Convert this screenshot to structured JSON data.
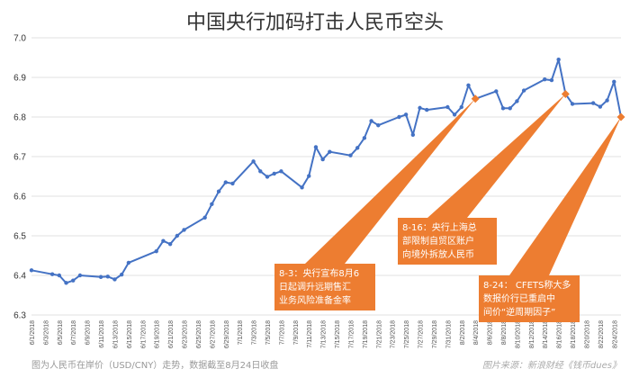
{
  "chart_data": {
    "type": "line",
    "title": "中国央行加码打击人民币空头",
    "ylim": [
      6.3,
      7.0
    ],
    "yticks": [
      "6.3",
      "6.4",
      "6.5",
      "6.6",
      "6.7",
      "6.8",
      "6.9",
      "7.0"
    ],
    "xtick_labels": [
      "6/1/2018",
      "6/3/2018",
      "6/5/2018",
      "6/7/2018",
      "6/9/2018",
      "6/11/2018",
      "6/13/2018",
      "6/15/2018",
      "6/17/2018",
      "6/19/2018",
      "6/21/2018",
      "6/23/2018",
      "6/25/2018",
      "6/27/2018",
      "6/29/2018",
      "7/1/2018",
      "7/3/2018",
      "7/5/2018",
      "7/7/2018",
      "7/9/2018",
      "7/11/2018",
      "7/13/2018",
      "7/15/2018",
      "7/17/2018",
      "7/19/2018",
      "7/21/2018",
      "7/23/2018",
      "7/25/2018",
      "7/27/2018",
      "7/29/2018",
      "7/31/2018",
      "8/2/2018",
      "8/4/2018",
      "8/6/2018",
      "8/8/2018",
      "8/10/2018",
      "8/12/2018",
      "8/14/2018",
      "8/16/2018",
      "8/18/2018",
      "8/20/2018",
      "8/22/2018",
      "8/24/2018"
    ],
    "grid": true,
    "series": [
      {
        "color": "#4472C4",
        "points": [
          [
            "2018-06-01",
            6.413
          ],
          [
            "2018-06-04",
            6.403
          ],
          [
            "2018-06-05",
            6.4
          ],
          [
            "2018-06-06",
            6.381
          ],
          [
            "2018-06-07",
            6.387
          ],
          [
            "2018-06-08",
            6.4
          ],
          [
            "2018-06-11",
            6.396
          ],
          [
            "2018-06-12",
            6.397
          ],
          [
            "2018-06-13",
            6.39
          ],
          [
            "2018-06-14",
            6.402
          ],
          [
            "2018-06-15",
            6.432
          ],
          [
            "2018-06-19",
            6.461
          ],
          [
            "2018-06-20",
            6.487
          ],
          [
            "2018-06-21",
            6.479
          ],
          [
            "2018-06-22",
            6.5
          ],
          [
            "2018-06-23",
            6.515
          ],
          [
            "2018-06-26",
            6.546
          ],
          [
            "2018-06-27",
            6.58
          ],
          [
            "2018-06-28",
            6.612
          ],
          [
            "2018-06-29",
            6.635
          ],
          [
            "2018-06-30",
            6.632
          ],
          [
            "2018-07-03",
            6.688
          ],
          [
            "2018-07-04",
            6.663
          ],
          [
            "2018-07-05",
            6.649
          ],
          [
            "2018-07-06",
            6.657
          ],
          [
            "2018-07-07",
            6.663
          ],
          [
            "2018-07-10",
            6.622
          ],
          [
            "2018-07-11",
            6.651
          ],
          [
            "2018-07-12",
            6.724
          ],
          [
            "2018-07-13",
            6.693
          ],
          [
            "2018-07-14",
            6.712
          ],
          [
            "2018-07-17",
            6.703
          ],
          [
            "2018-07-18",
            6.722
          ],
          [
            "2018-07-19",
            6.747
          ],
          [
            "2018-07-20",
            6.79
          ],
          [
            "2018-07-21",
            6.779
          ],
          [
            "2018-07-24",
            6.8
          ],
          [
            "2018-07-25",
            6.806
          ],
          [
            "2018-07-26",
            6.755
          ],
          [
            "2018-07-27",
            6.823
          ],
          [
            "2018-07-28",
            6.818
          ],
          [
            "2018-07-31",
            6.825
          ],
          [
            "2018-08-01",
            6.806
          ],
          [
            "2018-08-02",
            6.825
          ],
          [
            "2018-08-03",
            6.88
          ],
          [
            "2018-08-04",
            6.846
          ],
          [
            "2018-08-07",
            6.865
          ],
          [
            "2018-08-08",
            6.822
          ],
          [
            "2018-08-09",
            6.822
          ],
          [
            "2018-08-10",
            6.84
          ],
          [
            "2018-08-11",
            6.867
          ],
          [
            "2018-08-14",
            6.895
          ],
          [
            "2018-08-15",
            6.893
          ],
          [
            "2018-08-16",
            6.945
          ],
          [
            "2018-08-17",
            6.858
          ],
          [
            "2018-08-18",
            6.833
          ],
          [
            "2018-08-21",
            6.835
          ],
          [
            "2018-08-22",
            6.826
          ],
          [
            "2018-08-23",
            6.842
          ],
          [
            "2018-08-24",
            6.889
          ],
          [
            "2018-08-25",
            6.8
          ]
        ]
      }
    ],
    "markers": [
      {
        "x": "2018-08-04",
        "y": 6.846,
        "color": "#ED7D31"
      },
      {
        "x": "2018-08-17",
        "y": 6.858,
        "color": "#ED7D31"
      },
      {
        "x": "2018-08-25",
        "y": 6.8,
        "color": "#ED7D31"
      }
    ],
    "annotations": [
      {
        "lines": [
          "8-3：央行宣布8月6",
          "日起调升远期售汇",
          "业务风险准备金率"
        ],
        "target": "2018-08-04",
        "color": "#ED7D31"
      },
      {
        "lines": [
          "8-16：央行上海总",
          "部限制自贸区账户",
          "向境外拆放人民币"
        ],
        "target": "2018-08-17",
        "color": "#ED7D31"
      },
      {
        "lines": [
          "8-24： CFETS称大多",
          "数报价行已重启中",
          "间价“逆周期因子”"
        ],
        "target": "2018-08-25",
        "color": "#ED7D31"
      }
    ]
  },
  "footer": "图为人民币在岸价（USD/CNY）走势，数据截至8月24日收盘",
  "credit": "图片来源：新浪财经《钱币dues》"
}
